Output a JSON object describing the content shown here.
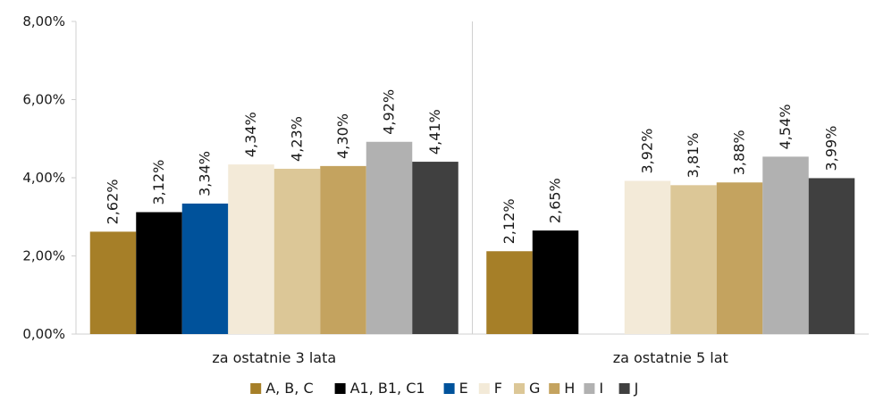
{
  "chart_data": {
    "type": "bar",
    "title": "",
    "xlabel": "",
    "ylabel": "",
    "ylim": [
      0,
      8
    ],
    "yticks": [
      "0,00%",
      "2,00%",
      "4,00%",
      "6,00%",
      "8,00%"
    ],
    "ytick_values": [
      0,
      2,
      4,
      6,
      8
    ],
    "grid": false,
    "legend_position": "bottom",
    "categories": [
      "za ostatnie 3 lata",
      "za ostatnie 5 lat"
    ],
    "series": [
      {
        "name": "A, B, C",
        "color": "#a67f28",
        "values": [
          2.62,
          2.12
        ],
        "labels": [
          "2,62%",
          "2,12%"
        ]
      },
      {
        "name": "A1, B1, C1",
        "color": "#000000",
        "values": [
          3.12,
          2.65
        ],
        "labels": [
          "3,12%",
          "2,65%"
        ]
      },
      {
        "name": "E",
        "color": "#00529b",
        "values": [
          3.34,
          null
        ],
        "labels": [
          "3,34%",
          null
        ]
      },
      {
        "name": "F",
        "color": "#f3ead8",
        "values": [
          4.34,
          3.92
        ],
        "labels": [
          "4,34%",
          "3,92%"
        ]
      },
      {
        "name": "G",
        "color": "#dcc797",
        "values": [
          4.23,
          3.81
        ],
        "labels": [
          "4,23%",
          "3,81%"
        ]
      },
      {
        "name": "H",
        "color": "#c4a35f",
        "values": [
          4.3,
          3.88
        ],
        "labels": [
          "4,30%",
          "3,88%"
        ]
      },
      {
        "name": "I",
        "color": "#b1b1b1",
        "values": [
          4.92,
          4.54
        ],
        "labels": [
          "4,92%",
          "4,54%"
        ]
      },
      {
        "name": "J",
        "color": "#404040",
        "values": [
          4.41,
          3.99
        ],
        "labels": [
          "4,41%",
          "3,99%"
        ]
      }
    ]
  }
}
